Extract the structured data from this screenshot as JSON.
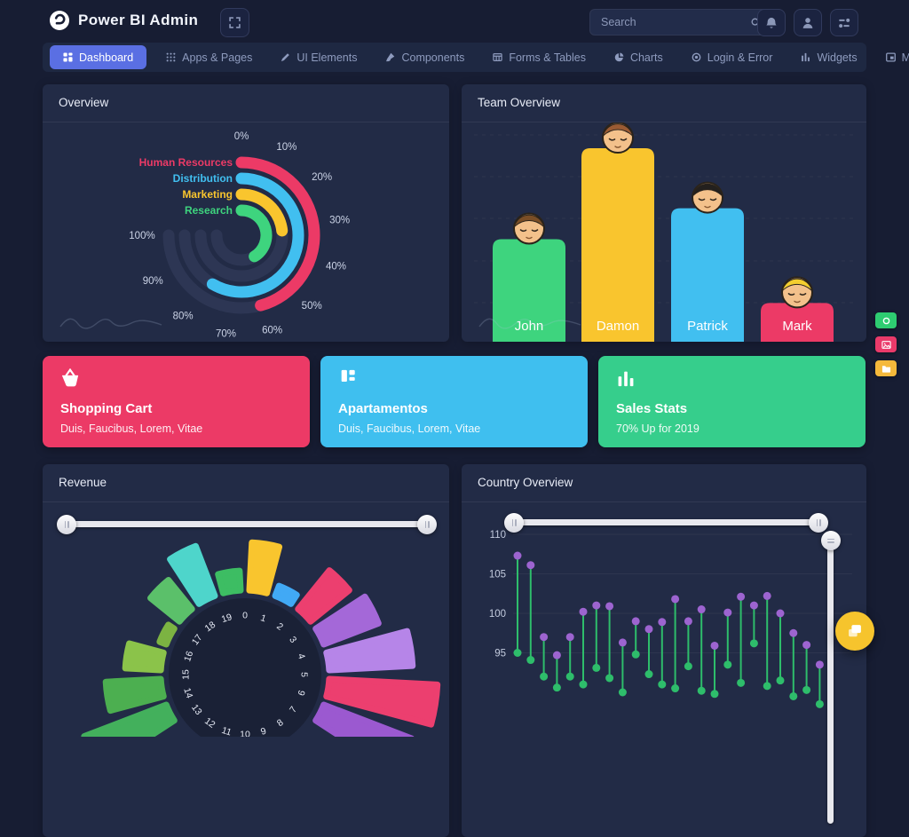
{
  "brand": {
    "name": "Power BI Admin"
  },
  "header": {
    "search": {
      "placeholder": "Search"
    },
    "actions": [
      {
        "name": "notifications",
        "icon": "bell-icon"
      },
      {
        "name": "profile",
        "icon": "person-icon"
      },
      {
        "name": "settings",
        "icon": "mixer-icon"
      }
    ],
    "fullscreen_icon": "expand-icon",
    "logo_icon": "swirl-logo-icon"
  },
  "nav": {
    "active_color": "#5A6FE3",
    "items": [
      {
        "label": "Dashboard",
        "icon": "grid-icon",
        "active": true
      },
      {
        "label": "Apps & Pages",
        "icon": "dots-icon",
        "active": false
      },
      {
        "label": "UI Elements",
        "icon": "pencil-icon",
        "active": false
      },
      {
        "label": "Components",
        "icon": "brush-icon",
        "active": false
      },
      {
        "label": "Forms & Tables",
        "icon": "table-icon",
        "active": false
      },
      {
        "label": "Charts",
        "icon": "pie-icon",
        "active": false
      },
      {
        "label": "Login & Error",
        "icon": "target-icon",
        "active": false
      },
      {
        "label": "Widgets",
        "icon": "bars-icon",
        "active": false
      },
      {
        "label": "Modals",
        "icon": "window-icon",
        "active": false
      }
    ]
  },
  "panels": {
    "overview": "Overview",
    "team": "Team Overview",
    "revenue": "Revenue",
    "country": "Country Overview"
  },
  "cards": [
    {
      "title": "Shopping Cart",
      "subtitle": "Duis, Faucibus, Lorem, Vitae",
      "color": "#EC3A66",
      "icon": "shopping-basket-icon"
    },
    {
      "title": "Apartamentos",
      "subtitle": "Duis, Faucibus, Lorem, Vitae",
      "color": "#3FBFEF",
      "icon": "blocks-icon"
    },
    {
      "title": "Sales Stats",
      "subtitle": "70% Up for 2019",
      "color": "#36CE8C",
      "icon": "bar-chart-icon"
    }
  ],
  "side_actions": [
    {
      "name": "camera-quick-action",
      "color": "#2ECC71",
      "icon": "camera-icon"
    },
    {
      "name": "image-quick-action",
      "color": "#EA3A6A",
      "icon": "image-icon"
    },
    {
      "name": "folder-quick-action",
      "color": "#F5B93B",
      "icon": "folder-icon"
    }
  ],
  "fab": {
    "name": "chat-fab",
    "color": "#F6C42D",
    "icon": "copy-images-icon"
  },
  "chart_data": [
    {
      "id": "overview-radial",
      "type": "radial-bar",
      "title": "Overview",
      "categories": [
        "Human Resources",
        "Distribution",
        "Marketing",
        "Research"
      ],
      "values": [
        61,
        78,
        31,
        55
      ],
      "unit": "%",
      "colors": [
        "#EC3A66",
        "#41BFF0",
        "#F9C52E",
        "#3ED47E"
      ],
      "scale_labels": [
        "0%",
        "10%",
        "20%",
        "30%",
        "40%",
        "50%",
        "60%",
        "70%",
        "80%",
        "90%",
        "100%"
      ],
      "scale_max_angle_deg": 270,
      "track_color": "#2D3654",
      "legend_position": "labels-at-arc-start"
    },
    {
      "id": "team-bars",
      "type": "bar",
      "title": "Team Overview",
      "categories": [
        "John",
        "Damon",
        "Patrick",
        "Mark"
      ],
      "values": [
        53,
        100,
        69,
        20
      ],
      "ymax": 100,
      "colors": [
        "#3ED47E",
        "#F9C52E",
        "#41BFF0",
        "#EC3A66"
      ],
      "avatar_hair_colors": [
        "#7A4E26",
        "#9A5B33",
        "#23201E",
        "#F3CE2F"
      ],
      "grid": "dashed-horizontal",
      "bar_labels_inside": true
    },
    {
      "id": "revenue-rose",
      "type": "polar-rose",
      "title": "Revenue",
      "sector_count": 20,
      "axis_labels": [
        "0",
        "1",
        "2",
        "3",
        "4",
        "5",
        "6",
        "7",
        "8",
        "9",
        "10",
        "11",
        "12",
        "13",
        "14",
        "15",
        "16",
        "17",
        "18",
        "19"
      ],
      "wedges": [
        {
          "from": 13,
          "value": 105,
          "color": "#43B05C"
        },
        {
          "from": 14,
          "value": 68,
          "color": "#4CAF50"
        },
        {
          "from": 15,
          "value": 46,
          "color": "#8BC34A"
        },
        {
          "from": 16,
          "value": 14,
          "color": "#7CB342"
        },
        {
          "from": 17,
          "value": 48,
          "color": "#5BC06A"
        },
        {
          "from": 18,
          "value": 66,
          "color": "#4ED5CB"
        },
        {
          "from": 19,
          "value": 28,
          "color": "#3DBD63"
        },
        {
          "from": 0,
          "value": 60,
          "color": "#F9C52E"
        },
        {
          "from": 1,
          "value": 18,
          "color": "#41A9F5"
        },
        {
          "from": 2,
          "value": 62,
          "color": "#EC3F6F"
        },
        {
          "from": 3,
          "value": 72,
          "color": "#A468D8"
        },
        {
          "from": 4,
          "value": 100,
          "color": "#B685E8"
        },
        {
          "from": 5,
          "value": 128,
          "color": "#EC3F6F"
        },
        {
          "from": 6,
          "value": 112,
          "color": "#9B59D0"
        }
      ],
      "slider": {
        "handles": [
          0,
          100
        ]
      }
    },
    {
      "id": "country-lollipop",
      "type": "range-lollipop",
      "title": "Country Overview",
      "y_ticks": [
        110,
        105,
        100,
        95
      ],
      "stem_color": "#2EBD6B",
      "dot_top_color": "#9D64D0",
      "dot_bottom_color": "#2EBD6B",
      "points": [
        [
          95.0,
          107.3
        ],
        [
          94.1,
          106.1
        ],
        [
          92.0,
          97.0
        ],
        [
          90.6,
          94.7
        ],
        [
          92.0,
          97.0
        ],
        [
          91.0,
          100.2
        ],
        [
          93.1,
          101.0
        ],
        [
          91.8,
          100.9
        ],
        [
          90.0,
          96.3
        ],
        [
          94.8,
          99.0
        ],
        [
          92.3,
          98.0
        ],
        [
          91.0,
          98.9
        ],
        [
          90.5,
          101.8
        ],
        [
          93.3,
          99.0
        ],
        [
          90.2,
          100.5
        ],
        [
          89.8,
          95.9
        ],
        [
          93.5,
          100.1
        ],
        [
          91.2,
          102.1
        ],
        [
          96.2,
          101.0
        ],
        [
          90.8,
          102.2
        ],
        [
          91.5,
          100.0
        ],
        [
          89.5,
          97.5
        ],
        [
          90.3,
          96.0
        ],
        [
          88.5,
          93.5
        ]
      ],
      "sliders": {
        "horizontal_handles": [
          0,
          100
        ],
        "vertical_handle": 0
      }
    }
  ]
}
